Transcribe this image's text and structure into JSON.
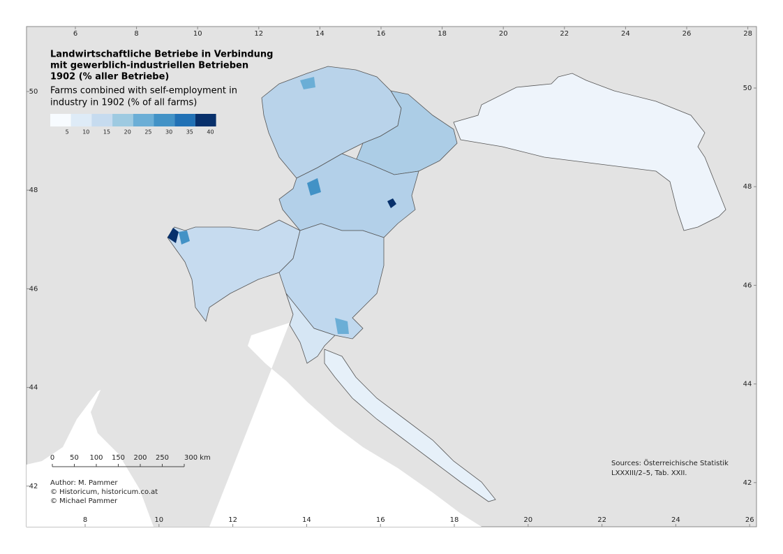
{
  "map": {
    "title": [
      "Landwirtschaftliche Betriebe in Verbindung",
      "mit gewerblich-industriellen Betrieben",
      "1902 (% aller Betriebe)"
    ],
    "subtitle": [
      "Farms combined with self-employment in",
      "industry in 1902 (% of all farms)"
    ],
    "legend": {
      "colors": [
        "#f7fbff",
        "#deebf7",
        "#c6dbef",
        "#9ecae1",
        "#6baed6",
        "#4292c6",
        "#2171b5",
        "#08306b"
      ],
      "labels": [
        5,
        10,
        15,
        20,
        25,
        30,
        35,
        40
      ]
    },
    "frame": {
      "top_ticks": [
        6,
        8,
        10,
        12,
        14,
        16,
        18,
        20,
        22,
        24,
        26,
        28
      ],
      "bottom_ticks": [
        8,
        10,
        12,
        14,
        16,
        18,
        20,
        22,
        24,
        26
      ],
      "left_ticks": [
        50,
        48,
        46,
        44,
        42
      ],
      "right_ticks": [
        50,
        48,
        46,
        44,
        42
      ]
    },
    "scale_bar": [
      "0",
      "50",
      "100",
      "150",
      "200",
      "250",
      "300 km"
    ],
    "credits": [
      "Author: M. Pammer",
      "© Historicum, historicum.co.at",
      "© Michael Pammer"
    ],
    "sources": [
      "Sources: Österreichische Statistik",
      "LXXXIII/2–5, Tab. XXII."
    ]
  }
}
